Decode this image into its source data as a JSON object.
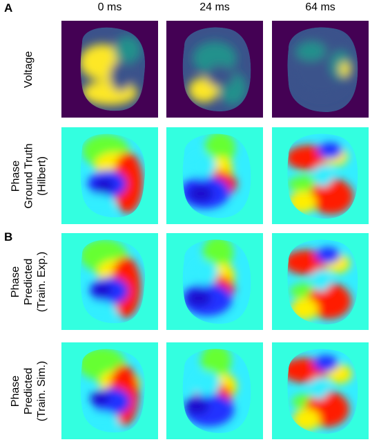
{
  "panels": {
    "a": "A",
    "b": "B"
  },
  "columns": [
    "0 ms",
    "24 ms",
    "64 ms"
  ],
  "rows": [
    {
      "lines": [
        "Voltage"
      ],
      "type": "voltage"
    },
    {
      "lines": [
        "Phase",
        "Ground Truth",
        "(Hilbert)"
      ],
      "type": "phase"
    },
    {
      "lines": [
        "Phase",
        "Predicted",
        "(Train. Exp.)"
      ],
      "type": "phase"
    },
    {
      "lines": [
        "Phase",
        "Predicted",
        "(Train. Sim.)"
      ],
      "type": "phase"
    }
  ],
  "colors": {
    "voltage_background": "#440154",
    "voltage_low": "#3b528b",
    "voltage_mid": "#21918c",
    "voltage_high": "#fde725",
    "phase_background": "#33ffe0",
    "phase_red": "#ff1a00",
    "phase_yellow": "#ffee00",
    "phase_green": "#66ff33",
    "phase_cyan": "#33eeff",
    "phase_blue": "#2233ff",
    "phase_darkblue": "#1a10cc"
  }
}
